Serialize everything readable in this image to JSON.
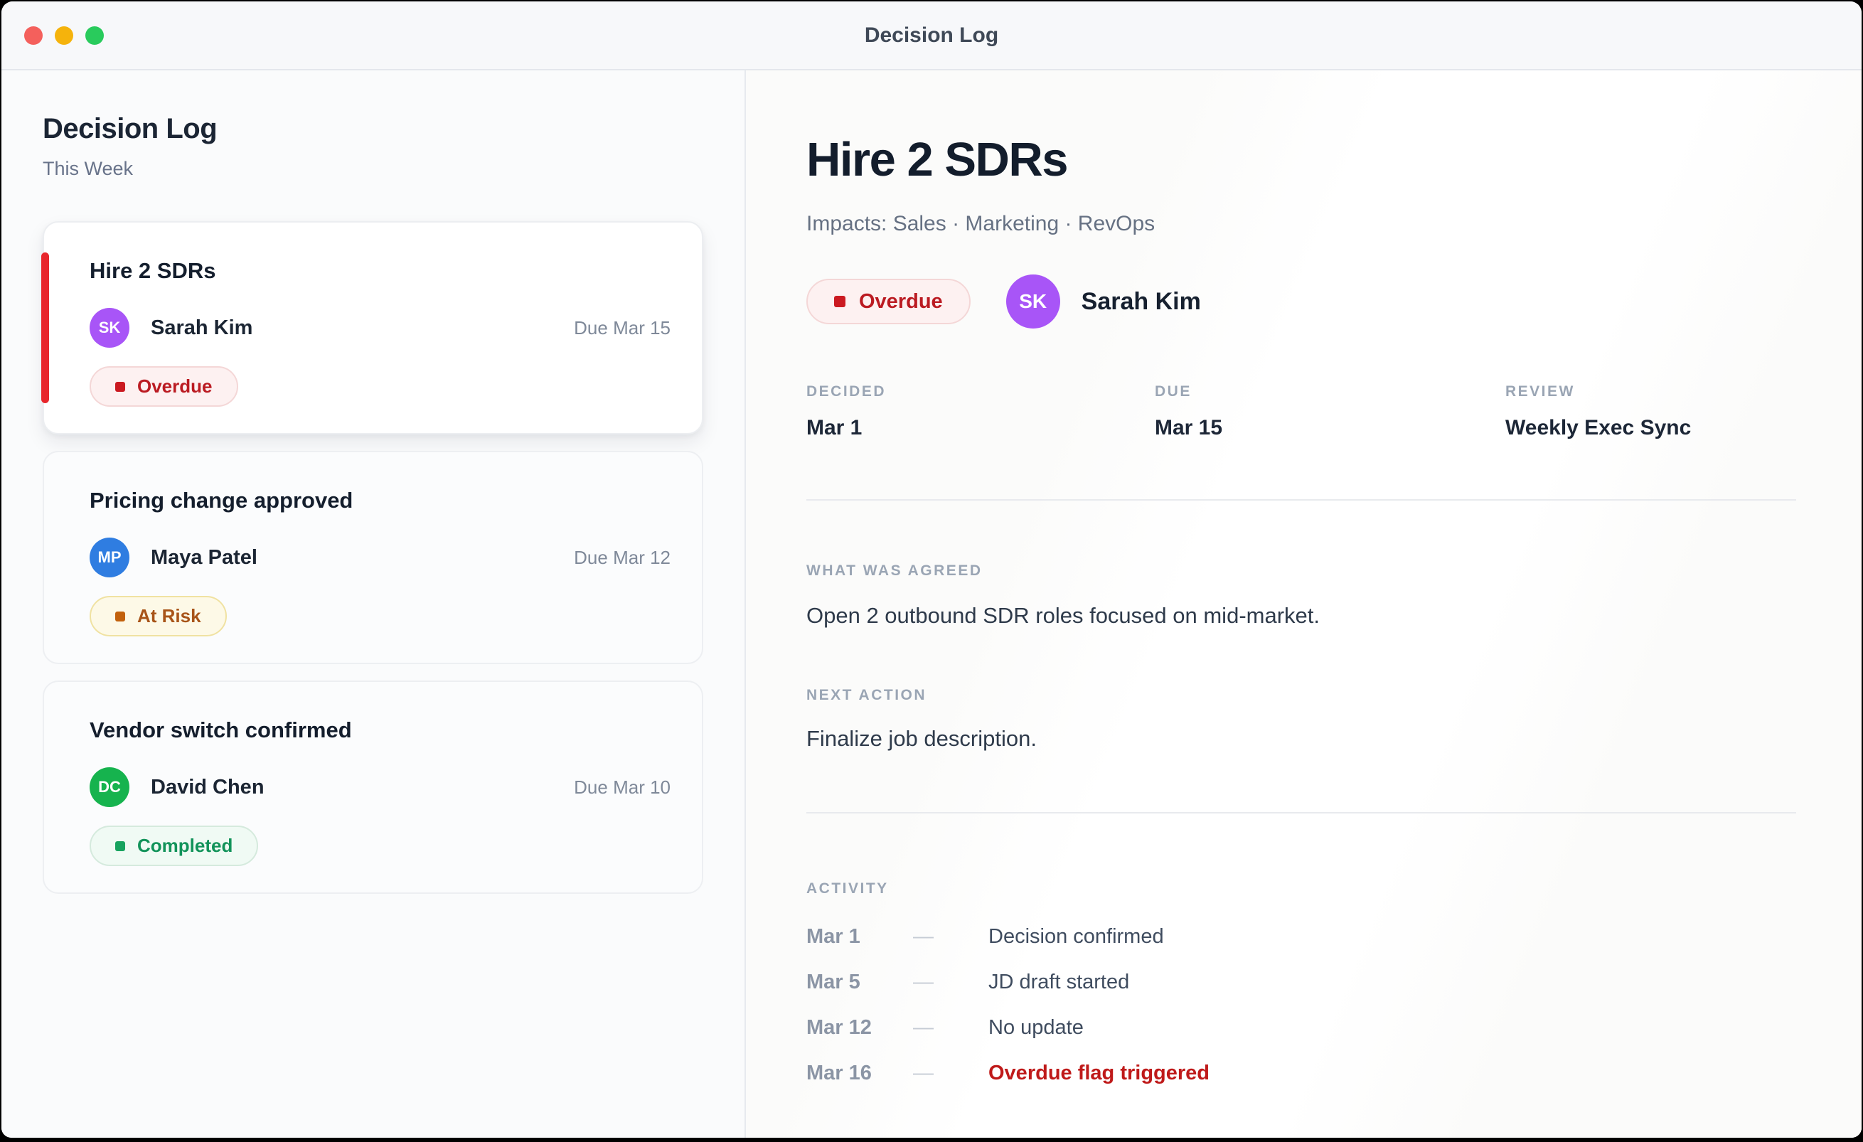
{
  "window": {
    "title": "Decision Log"
  },
  "sidebar": {
    "title": "Decision Log",
    "subtitle": "This Week",
    "cards": [
      {
        "title": "Hire 2 SDRs",
        "initials": "SK",
        "owner": "Sarah Kim",
        "due": "Due Mar 15",
        "status": "Overdue",
        "avatar_color": "#a855f7",
        "selected": true
      },
      {
        "title": "Pricing change approved",
        "initials": "MP",
        "owner": "Maya Patel",
        "due": "Due Mar 12",
        "status": "At Risk",
        "avatar_color": "#2f7de1",
        "selected": false
      },
      {
        "title": "Vendor switch confirmed",
        "initials": "DC",
        "owner": "David Chen",
        "due": "Due Mar 10",
        "status": "Completed",
        "avatar_color": "#16b34e",
        "selected": false
      }
    ]
  },
  "detail": {
    "title": "Hire 2 SDRs",
    "impacts": "Impacts: Sales · Marketing · RevOps",
    "status": "Overdue",
    "owner_initials": "SK",
    "owner": "Sarah Kim",
    "owner_avatar_color": "#a855f7",
    "meta": [
      {
        "label": "DECIDED",
        "value": "Mar 1"
      },
      {
        "label": "DUE",
        "value": "Mar 15"
      },
      {
        "label": "REVIEW",
        "value": "Weekly Exec Sync"
      }
    ],
    "agreed_label": "WHAT WAS AGREED",
    "agreed": "Open 2 outbound SDR roles focused on mid-market.",
    "next_label": "NEXT ACTION",
    "next": "Finalize job description.",
    "activity_label": "ACTIVITY",
    "separator": "—",
    "activity": [
      {
        "date": "Mar 1",
        "text": "Decision confirmed"
      },
      {
        "date": "Mar 5",
        "text": "JD draft started"
      },
      {
        "date": "Mar 12",
        "text": "No update"
      },
      {
        "date": "Mar 16",
        "text": "Overdue flag triggered",
        "alert": true
      }
    ]
  },
  "colors": {
    "light-red": "#f4605c",
    "light-yellow": "#f5b30c",
    "light-green": "#29cb5c",
    "accent-red": "#e8262c",
    "overdue-bg": "#fdf1f1",
    "overdue-border": "#f4d7d7",
    "overdue-text": "#bb1b22",
    "overdue-bullet": "#cb1a21",
    "atrisk-bg": "#fdf9e7",
    "atrisk-border": "#f0e2a2",
    "atrisk-text": "#a85418",
    "atrisk-bullet": "#c2610c",
    "completed-bg": "#f0faf4",
    "completed-border": "#d5eadd",
    "completed-text": "#12935a",
    "completed-bullet": "#18a35f",
    "alert-red": "#bf1a1a"
  }
}
